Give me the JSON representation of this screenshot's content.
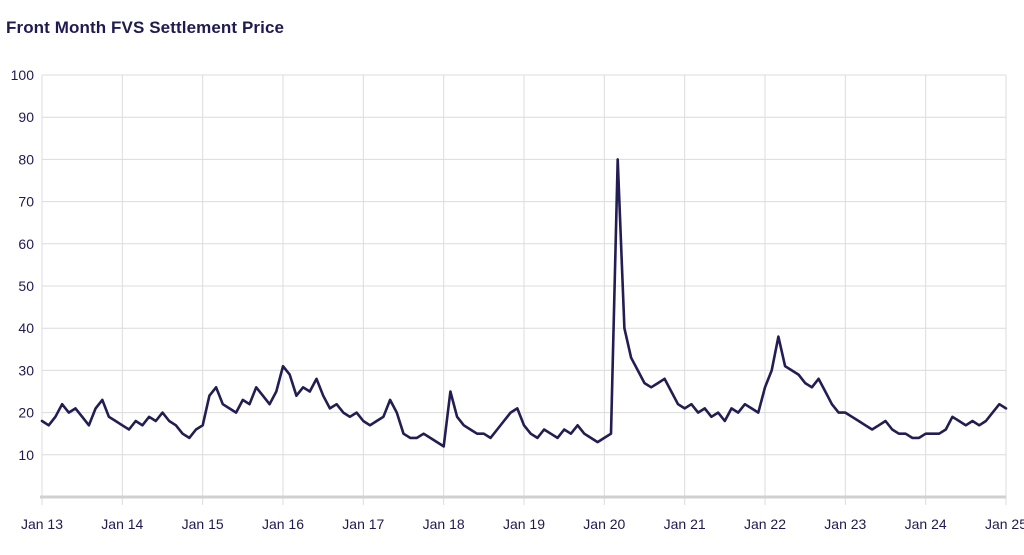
{
  "chart_data": {
    "type": "line",
    "title": "Front Month FVS Settlement Price",
    "xlabel": "",
    "ylabel": "",
    "ylim": [
      0,
      100
    ],
    "xlim": [
      "2013-01",
      "2025-01"
    ],
    "y_ticks": [
      "10",
      "20",
      "30",
      "40",
      "50",
      "60",
      "70",
      "80",
      "90",
      "100"
    ],
    "x_ticks": [
      {
        "label": "Jan 13",
        "date": "2013-01"
      },
      {
        "label": "Jan 14",
        "date": "2014-01"
      },
      {
        "label": "Jan 15",
        "date": "2015-01"
      },
      {
        "label": "Jan 16",
        "date": "2016-01"
      },
      {
        "label": "Jan 17",
        "date": "2017-01"
      },
      {
        "label": "Jan 18",
        "date": "2018-01"
      },
      {
        "label": "Jan 19",
        "date": "2019-01"
      },
      {
        "label": "Jan 20",
        "date": "2020-01"
      },
      {
        "label": "Jan 21",
        "date": "2021-01"
      },
      {
        "label": "Jan 22",
        "date": "2022-01"
      },
      {
        "label": "Jan 23",
        "date": "2023-01"
      },
      {
        "label": "Jan 24",
        "date": "2024-01"
      },
      {
        "label": "Jan 25",
        "date": "2025-01"
      }
    ],
    "grid": true,
    "legend": "none",
    "line_color": "#221d52",
    "series": [
      {
        "x": [
          "2013-01",
          "2013-02",
          "2013-03",
          "2013-04",
          "2013-05",
          "2013-06",
          "2013-07",
          "2013-08",
          "2013-09",
          "2013-10",
          "2013-11",
          "2013-12",
          "2014-01",
          "2014-02",
          "2014-03",
          "2014-04",
          "2014-05",
          "2014-06",
          "2014-07",
          "2014-08",
          "2014-09",
          "2014-10",
          "2014-11",
          "2014-12",
          "2015-01",
          "2015-02",
          "2015-03",
          "2015-04",
          "2015-05",
          "2015-06",
          "2015-07",
          "2015-08",
          "2015-09",
          "2015-10",
          "2015-11",
          "2015-12",
          "2016-01",
          "2016-02",
          "2016-03",
          "2016-04",
          "2016-05",
          "2016-06",
          "2016-07",
          "2016-08",
          "2016-09",
          "2016-10",
          "2016-11",
          "2016-12",
          "2017-01",
          "2017-02",
          "2017-03",
          "2017-04",
          "2017-05",
          "2017-06",
          "2017-07",
          "2017-08",
          "2017-09",
          "2017-10",
          "2017-11",
          "2017-12",
          "2018-01",
          "2018-02",
          "2018-03",
          "2018-04",
          "2018-05",
          "2018-06",
          "2018-07",
          "2018-08",
          "2018-09",
          "2018-10",
          "2018-11",
          "2018-12",
          "2019-01",
          "2019-02",
          "2019-03",
          "2019-04",
          "2019-05",
          "2019-06",
          "2019-07",
          "2019-08",
          "2019-09",
          "2019-10",
          "2019-11",
          "2019-12",
          "2020-01",
          "2020-02",
          "2020-03",
          "2020-04",
          "2020-05",
          "2020-06",
          "2020-07",
          "2020-08",
          "2020-09",
          "2020-10",
          "2020-11",
          "2020-12",
          "2021-01",
          "2021-02",
          "2021-03",
          "2021-04",
          "2021-05",
          "2021-06",
          "2021-07",
          "2021-08",
          "2021-09",
          "2021-10",
          "2021-11",
          "2021-12",
          "2022-01",
          "2022-02",
          "2022-03",
          "2022-04",
          "2022-05",
          "2022-06",
          "2022-07",
          "2022-08",
          "2022-09",
          "2022-10",
          "2022-11",
          "2022-12",
          "2023-01",
          "2023-02",
          "2023-03",
          "2023-04",
          "2023-05",
          "2023-06",
          "2023-07",
          "2023-08",
          "2023-09",
          "2023-10",
          "2023-11",
          "2023-12",
          "2024-01",
          "2024-02",
          "2024-03",
          "2024-04",
          "2024-05",
          "2024-06",
          "2024-07",
          "2024-08",
          "2024-09",
          "2024-10",
          "2024-11",
          "2024-12",
          "2025-01"
        ],
        "values": [
          18,
          17,
          19,
          22,
          20,
          21,
          19,
          17,
          21,
          23,
          19,
          18,
          17,
          16,
          18,
          17,
          19,
          18,
          20,
          18,
          17,
          15,
          14,
          16,
          17,
          24,
          26,
          22,
          21,
          20,
          23,
          22,
          26,
          24,
          22,
          25,
          31,
          29,
          24,
          26,
          25,
          28,
          24,
          21,
          22,
          20,
          19,
          20,
          18,
          17,
          18,
          19,
          23,
          20,
          15,
          14,
          14,
          15,
          14,
          13,
          12,
          25,
          19,
          17,
          16,
          15,
          15,
          14,
          16,
          18,
          20,
          21,
          17,
          15,
          14,
          16,
          15,
          14,
          16,
          15,
          17,
          15,
          14,
          13,
          14,
          15,
          80,
          40,
          33,
          30,
          27,
          26,
          27,
          28,
          25,
          22,
          21,
          22,
          20,
          21,
          19,
          20,
          18,
          21,
          20,
          22,
          21,
          20,
          26,
          30,
          38,
          31,
          30,
          29,
          27,
          26,
          28,
          25,
          22,
          20,
          20,
          19,
          18,
          17,
          16,
          17,
          18,
          16,
          15,
          15,
          14,
          14,
          15,
          15,
          15,
          16,
          19,
          18,
          17,
          18,
          17,
          18,
          20,
          22,
          21
        ]
      }
    ]
  }
}
